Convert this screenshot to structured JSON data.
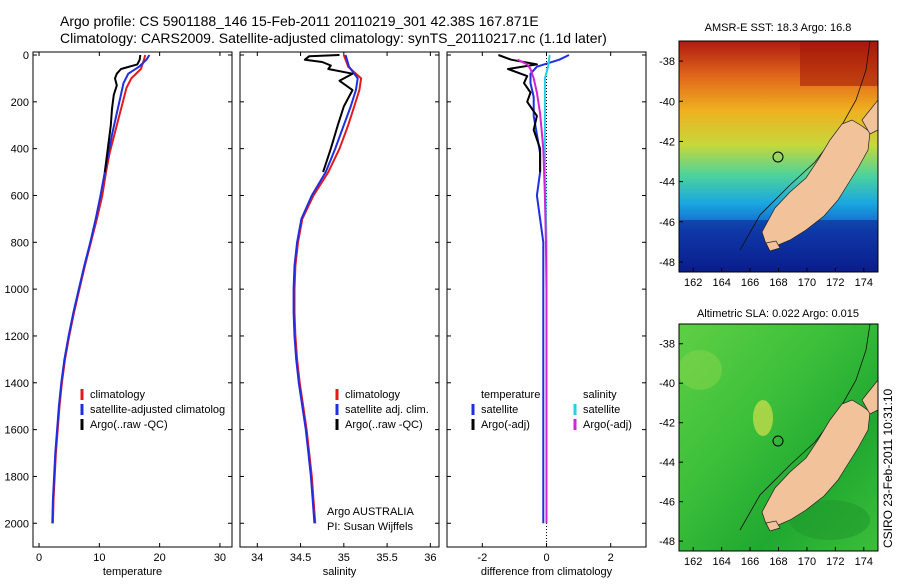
{
  "header": {
    "line1": "Argo profile: CS 5901188_146 15-Feb-2011 20110219_301 42.38S 167.871E",
    "line2": "Climatology: CARS2009. Satellite-adjusted climatology: synTS_20110217.nc (1.1d later)"
  },
  "footer": {
    "credit": "CSIRO 23-Feb-2011 10:31:10"
  },
  "colors": {
    "climatology": "#e31a1c",
    "satellite": "#1f2ee0",
    "argo": "#000000",
    "salinity_satellite": "#22d3e6",
    "salinity_argo": "#d024d6",
    "land": "#f2c39b"
  },
  "chart_data": [
    {
      "id": "temperature",
      "type": "line",
      "xlabel": "temperature",
      "ylabel": "",
      "xlim": [
        -1,
        32
      ],
      "ylim": [
        0,
        2100
      ],
      "xticks": [
        0,
        10,
        20,
        30
      ],
      "yticks": [
        0,
        200,
        400,
        600,
        800,
        1000,
        1200,
        1400,
        1600,
        1800,
        2000
      ],
      "y_inverted": true,
      "legend": [
        "climatology",
        "satellite-adjusted climatolog",
        "Argo(..raw -QC)"
      ],
      "series": [
        {
          "name": "climatology",
          "color": "#e31a1c",
          "points": [
            [
              17.6,
              0
            ],
            [
              17.4,
              20
            ],
            [
              16.9,
              60
            ],
            [
              15.3,
              100
            ],
            [
              14.5,
              140
            ],
            [
              13.9,
              200
            ],
            [
              13.2,
              270
            ],
            [
              12.4,
              350
            ],
            [
              11.7,
              420
            ],
            [
              11.1,
              500
            ],
            [
              10.5,
              600
            ],
            [
              9.6,
              700
            ],
            [
              8.6,
              800
            ],
            [
              7.6,
              900
            ],
            [
              6.7,
              1000
            ],
            [
              5.8,
              1100
            ],
            [
              5.0,
              1200
            ],
            [
              4.3,
              1300
            ],
            [
              3.8,
              1400
            ],
            [
              3.4,
              1500
            ],
            [
              3.1,
              1600
            ],
            [
              2.8,
              1700
            ],
            [
              2.6,
              1800
            ],
            [
              2.4,
              1900
            ],
            [
              2.3,
              2000
            ]
          ]
        },
        {
          "name": "satellite-adjusted climatology",
          "color": "#1f2ee0",
          "points": [
            [
              18.3,
              0
            ],
            [
              17.8,
              20
            ],
            [
              16.6,
              50
            ],
            [
              14.8,
              80
            ],
            [
              14.0,
              120
            ],
            [
              13.5,
              180
            ],
            [
              12.8,
              260
            ],
            [
              12.1,
              340
            ],
            [
              11.5,
              420
            ],
            [
              10.9,
              500
            ],
            [
              10.2,
              600
            ],
            [
              9.4,
              700
            ],
            [
              8.5,
              800
            ],
            [
              7.5,
              900
            ],
            [
              6.6,
              1000
            ],
            [
              5.7,
              1100
            ],
            [
              4.9,
              1200
            ],
            [
              4.2,
              1300
            ],
            [
              3.7,
              1400
            ],
            [
              3.3,
              1500
            ],
            [
              3.0,
              1600
            ],
            [
              2.7,
              1700
            ],
            [
              2.5,
              1800
            ],
            [
              2.3,
              1900
            ],
            [
              2.2,
              2000
            ]
          ]
        },
        {
          "name": "Argo(..raw -QC)",
          "color": "#000000",
          "points": [
            [
              16.8,
              0
            ],
            [
              16.7,
              20
            ],
            [
              16.3,
              40
            ],
            [
              13.6,
              60
            ],
            [
              12.9,
              80
            ],
            [
              12.6,
              100
            ],
            [
              12.9,
              130
            ],
            [
              12.4,
              170
            ],
            [
              12.1,
              230
            ],
            [
              11.9,
              300
            ],
            [
              11.4,
              400
            ],
            [
              10.9,
              500
            ]
          ]
        }
      ]
    },
    {
      "id": "salinity",
      "type": "line",
      "xlabel": "salinity",
      "ylabel": "",
      "xlim": [
        33.8,
        36.1
      ],
      "ylim": [
        0,
        2100
      ],
      "xticks": [
        34,
        34.5,
        35,
        35.5,
        36
      ],
      "yticks": [
        0,
        200,
        400,
        600,
        800,
        1000,
        1200,
        1400,
        1600,
        1800,
        2000
      ],
      "y_inverted": true,
      "legend": [
        "climatology",
        "satellite adj. clim.",
        "Argo(..raw -QC)"
      ],
      "annotations": [
        "Argo AUSTRALIA",
        "PI: Susan Wijffels"
      ],
      "series": [
        {
          "name": "climatology",
          "color": "#e31a1c",
          "points": [
            [
              35.0,
              0
            ],
            [
              35.05,
              50
            ],
            [
              35.2,
              100
            ],
            [
              35.18,
              150
            ],
            [
              35.12,
              220
            ],
            [
              35.05,
              300
            ],
            [
              34.95,
              400
            ],
            [
              34.82,
              500
            ],
            [
              34.65,
              600
            ],
            [
              34.52,
              700
            ],
            [
              34.47,
              800
            ],
            [
              34.44,
              900
            ],
            [
              34.43,
              1000
            ],
            [
              34.43,
              1100
            ],
            [
              34.44,
              1200
            ],
            [
              34.46,
              1300
            ],
            [
              34.49,
              1400
            ],
            [
              34.53,
              1500
            ],
            [
              34.57,
              1600
            ],
            [
              34.6,
              1700
            ],
            [
              34.63,
              1800
            ],
            [
              34.65,
              1900
            ],
            [
              34.67,
              2000
            ]
          ]
        },
        {
          "name": "satellite adj. clim.",
          "color": "#1f2ee0",
          "points": [
            [
              35.02,
              0
            ],
            [
              35.06,
              50
            ],
            [
              35.16,
              100
            ],
            [
              35.14,
              150
            ],
            [
              35.08,
              220
            ],
            [
              35.0,
              300
            ],
            [
              34.9,
              400
            ],
            [
              34.79,
              500
            ],
            [
              34.63,
              600
            ],
            [
              34.51,
              700
            ],
            [
              34.46,
              800
            ],
            [
              34.43,
              900
            ],
            [
              34.42,
              1000
            ],
            [
              34.42,
              1100
            ],
            [
              34.43,
              1200
            ],
            [
              34.45,
              1300
            ],
            [
              34.48,
              1400
            ],
            [
              34.52,
              1500
            ],
            [
              34.56,
              1600
            ],
            [
              34.59,
              1700
            ],
            [
              34.62,
              1800
            ],
            [
              34.64,
              1900
            ],
            [
              34.66,
              2000
            ]
          ]
        },
        {
          "name": "Argo(..raw -QC)",
          "color": "#000000",
          "points": [
            [
              34.95,
              0
            ],
            [
              34.6,
              5
            ],
            [
              34.55,
              20
            ],
            [
              34.75,
              30
            ],
            [
              34.85,
              45
            ],
            [
              34.82,
              60
            ],
            [
              35.1,
              80
            ],
            [
              34.95,
              110
            ],
            [
              35.1,
              150
            ],
            [
              35.0,
              220
            ],
            [
              34.93,
              300
            ],
            [
              34.85,
              400
            ],
            [
              34.76,
              500
            ]
          ]
        }
      ]
    },
    {
      "id": "difference",
      "type": "line",
      "xlabel": "difference from climatology",
      "ylabel": "",
      "xlim": [
        -3.1,
        3.1
      ],
      "ylim": [
        0,
        2100
      ],
      "xticks": [
        -2,
        0,
        2
      ],
      "yticks": [
        0,
        200,
        400,
        600,
        800,
        1000,
        1200,
        1400,
        1600,
        1800,
        2000
      ],
      "y_inverted": true,
      "legend": [
        "temperature",
        "satellite",
        "Argo(-adj)",
        "salinity",
        "satellite",
        "Argo(-adj)"
      ],
      "series": [
        {
          "name": "temperature satellite",
          "color": "#1f2ee0",
          "points": [
            [
              0.7,
              0
            ],
            [
              0.4,
              20
            ],
            [
              -0.3,
              50
            ],
            [
              -0.5,
              80
            ],
            [
              -0.5,
              120
            ],
            [
              -0.4,
              180
            ],
            [
              -0.4,
              260
            ],
            [
              -0.3,
              340
            ],
            [
              -0.2,
              420
            ],
            [
              -0.2,
              500
            ],
            [
              -0.3,
              600
            ],
            [
              -0.2,
              700
            ],
            [
              -0.1,
              800
            ],
            [
              -0.1,
              900
            ],
            [
              -0.1,
              1000
            ],
            [
              -0.1,
              1200
            ],
            [
              -0.1,
              1400
            ],
            [
              -0.1,
              1600
            ],
            [
              -0.1,
              1800
            ],
            [
              -0.1,
              2000
            ]
          ]
        },
        {
          "name": "temperature Argo(-adj)",
          "color": "#000000",
          "points": [
            [
              -1.5,
              0
            ],
            [
              -1.1,
              20
            ],
            [
              -0.3,
              40
            ],
            [
              -1.2,
              60
            ],
            [
              -0.6,
              90
            ],
            [
              -0.7,
              120
            ],
            [
              -0.5,
              160
            ],
            [
              -0.6,
              200
            ],
            [
              -0.3,
              260
            ],
            [
              -0.4,
              320
            ],
            [
              -0.2,
              400
            ],
            [
              -0.2,
              500
            ]
          ]
        },
        {
          "name": "salinity satellite",
          "color": "#22d3e6",
          "points": [
            [
              0.1,
              0
            ],
            [
              0.05,
              50
            ],
            [
              -0.05,
              100
            ],
            [
              -0.05,
              200
            ],
            [
              -0.05,
              400
            ],
            [
              -0.03,
              600
            ],
            [
              0.0,
              800
            ],
            [
              0.0,
              1000
            ],
            [
              0.0,
              1200
            ],
            [
              0.0,
              1400
            ],
            [
              0.0,
              1600
            ],
            [
              0.0,
              1800
            ],
            [
              0.0,
              2000
            ]
          ]
        },
        {
          "name": "salinity Argo(-adj)",
          "color": "#d024d6",
          "points": [
            [
              -0.9,
              20
            ],
            [
              -0.6,
              40
            ],
            [
              -0.5,
              60
            ],
            [
              -0.4,
              100
            ],
            [
              -0.3,
              160
            ],
            [
              -0.2,
              250
            ],
            [
              -0.1,
              400
            ],
            [
              -0.05,
              600
            ],
            [
              -0.02,
              800
            ],
            [
              0.0,
              1000
            ],
            [
              0.0,
              1400
            ],
            [
              0.0,
              2000
            ]
          ]
        }
      ]
    }
  ],
  "maps": [
    {
      "id": "sst",
      "title": "AMSR-E SST: 18.3 Argo: 16.8",
      "xticks": [
        "162",
        "164",
        "166",
        "168",
        "170",
        "172",
        "174"
      ],
      "yticks": [
        "-38",
        "-40",
        "-42",
        "-44",
        "-46",
        "-48"
      ],
      "lon_range": [
        161,
        175
      ],
      "lat_range": [
        -48.5,
        -37
      ]
    },
    {
      "id": "sla",
      "title": "Altimetric SLA: 0.022 Argo: 0.015",
      "xticks": [
        "162",
        "164",
        "166",
        "168",
        "170",
        "172",
        "174"
      ],
      "yticks": [
        "-38",
        "-40",
        "-42",
        "-44",
        "-46",
        "-48"
      ],
      "lon_range": [
        161,
        175
      ],
      "lat_range": [
        -48.5,
        -37
      ]
    }
  ]
}
